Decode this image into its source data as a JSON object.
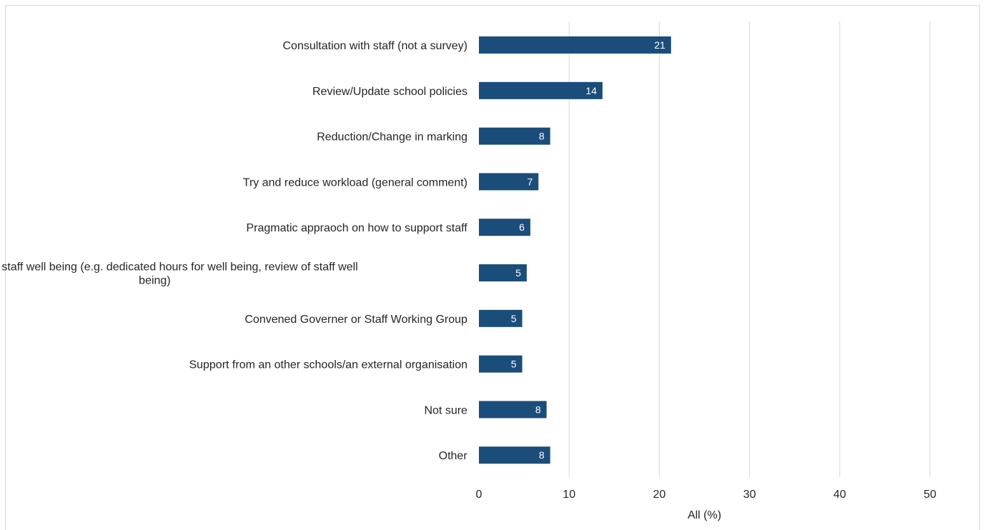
{
  "chart_data": {
    "type": "bar",
    "orientation": "horizontal",
    "categories": [
      [
        "Consultation with staff (not a survey)"
      ],
      [
        "Review/Update school policies"
      ],
      [
        "Reduction/Change in marking"
      ],
      [
        "Try and reduce workload (general comment)"
      ],
      [
        "Pragmatic appraoch on how to support staff"
      ],
      [
        "Focus on staff well being (e.g. dedicated hours for well being, review of staff well",
        "being)"
      ],
      [
        "Convened Governer or Staff Working Group"
      ],
      [
        "Support from an other schools/an external organisation"
      ],
      [
        "Not sure"
      ],
      [
        "Other"
      ]
    ],
    "values": [
      21.3,
      13.7,
      7.9,
      6.6,
      5.7,
      5.3,
      4.8,
      4.8,
      7.5,
      7.9
    ],
    "data_labels": [
      "21",
      "14",
      "8",
      "7",
      "6",
      "5",
      "5",
      "5",
      "8",
      "8"
    ],
    "xlabel": "All (%)",
    "xlim": [
      0,
      50
    ],
    "xticks": [
      "0",
      "10",
      "20",
      "30",
      "40",
      "50"
    ],
    "xtick_values": [
      0,
      10,
      20,
      30,
      40,
      50
    ],
    "grid": "vertical",
    "bar_color": "#1b4d7a",
    "grid_color": "#d9d9d9"
  }
}
